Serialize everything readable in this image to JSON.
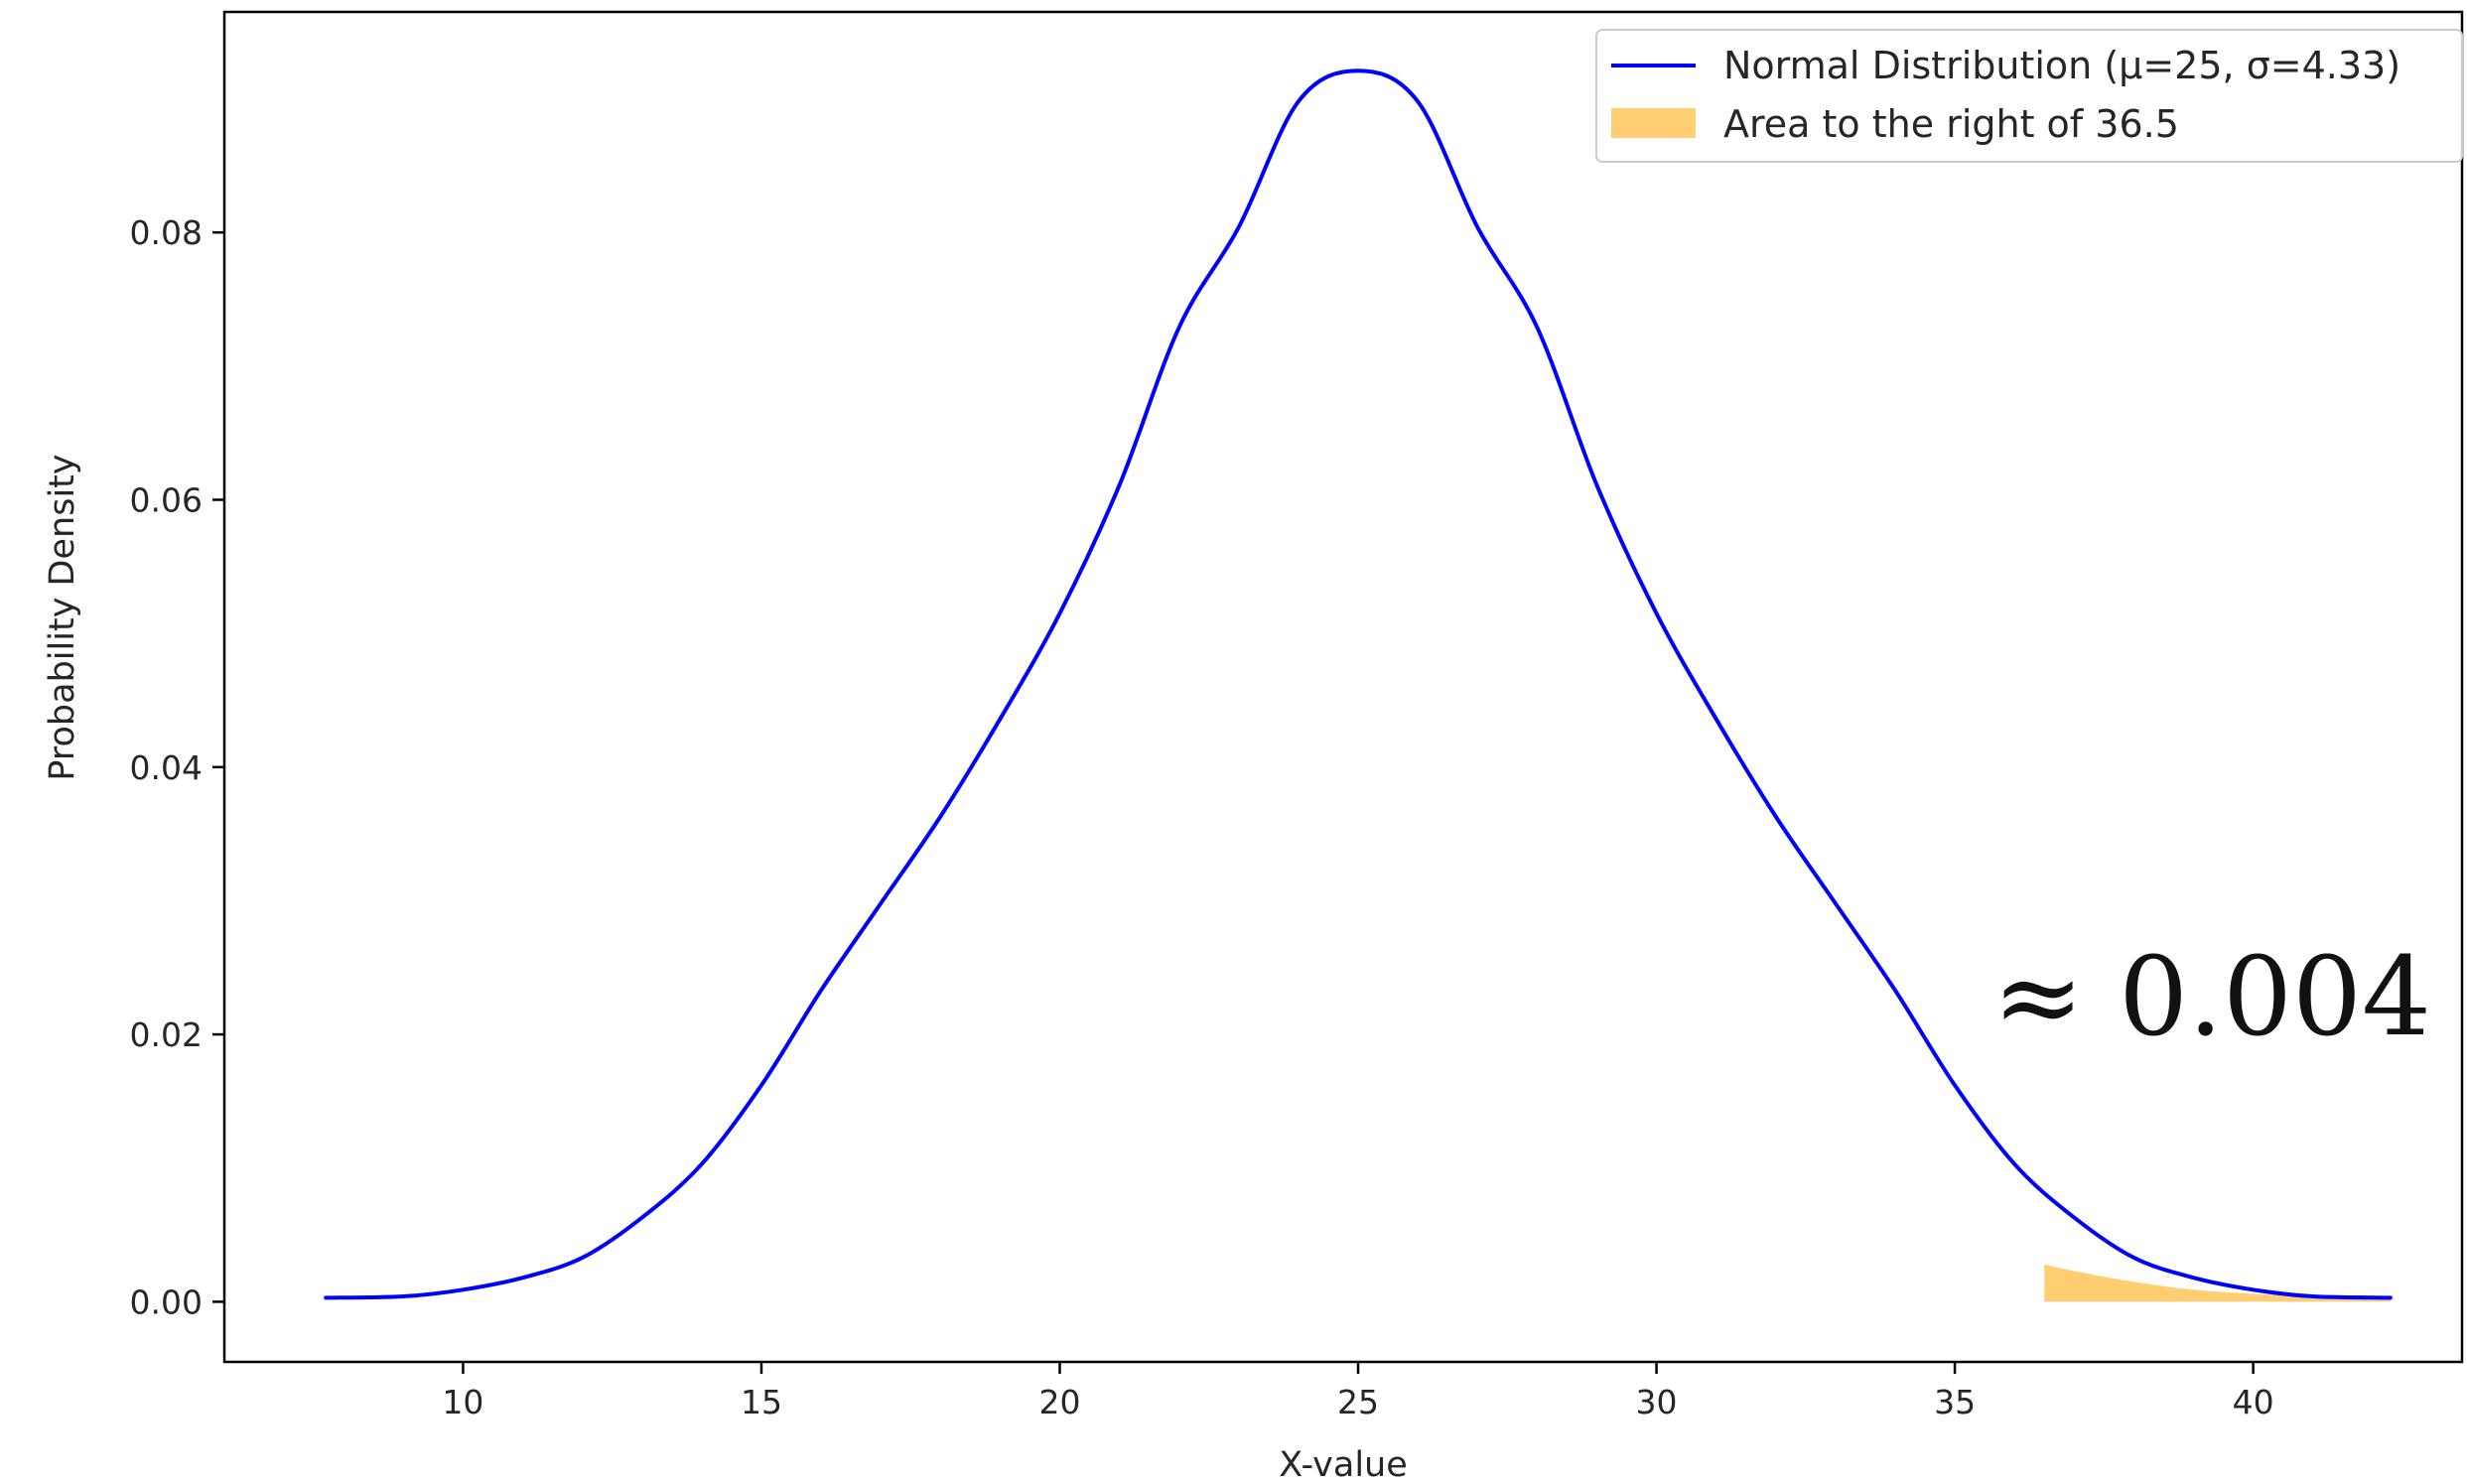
{
  "chart_data": {
    "type": "line",
    "title": "",
    "xlabel": "X-value",
    "ylabel": "Probability Density",
    "xlim": [
      6.0,
      43.5
    ],
    "ylim": [
      -0.0045,
      0.0965
    ],
    "xticks": [
      10,
      15,
      20,
      25,
      30,
      35,
      40
    ],
    "xtick_labels": [
      "10",
      "15",
      "20",
      "25",
      "30",
      "35",
      "40"
    ],
    "yticks": [
      0.0,
      0.02,
      0.04,
      0.06,
      0.08
    ],
    "ytick_labels": [
      "0.00",
      "0.02",
      "0.04",
      "0.06",
      "0.08"
    ],
    "grid": false,
    "legend_position": "top-right",
    "series": [
      {
        "name": "Normal Distribution (μ=25, σ=4.33)",
        "kind": "line",
        "color": "#0000ff",
        "x": [
          7.7,
          9,
          10,
          11,
          12,
          13,
          14,
          15,
          16,
          17,
          18,
          19,
          20,
          21,
          22,
          23,
          24,
          25,
          26,
          27,
          28,
          29,
          30,
          31,
          32,
          33,
          34,
          35,
          36,
          37,
          38,
          39,
          40,
          41,
          42.3
        ],
        "y": [
          0.0003,
          0.0004,
          0.0009,
          0.0018,
          0.0033,
          0.0063,
          0.0103,
          0.0162,
          0.0233,
          0.0298,
          0.0363,
          0.0436,
          0.0515,
          0.0611,
          0.0729,
          0.0804,
          0.0898,
          0.0921,
          0.0898,
          0.0804,
          0.0729,
          0.0611,
          0.0515,
          0.0436,
          0.0363,
          0.0298,
          0.0233,
          0.0162,
          0.0103,
          0.0063,
          0.0033,
          0.0018,
          0.0009,
          0.0004,
          0.0003
        ]
      },
      {
        "name": "Area to the right of 36.5",
        "kind": "area",
        "color": "#ffa500",
        "x": [
          36.5,
          37,
          38,
          39,
          40,
          41,
          42.3
        ],
        "y": [
          0.0028,
          0.0023,
          0.0015,
          0.0009,
          0.0006,
          0.0004,
          0.0003
        ]
      }
    ],
    "annotations": [
      {
        "text": "≈ 0.004"
      }
    ]
  }
}
